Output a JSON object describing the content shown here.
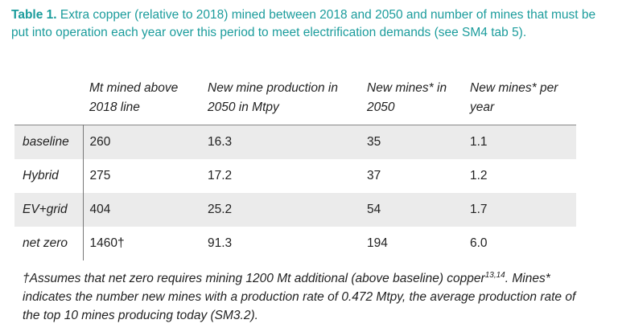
{
  "caption": {
    "label": "Table 1.",
    "text": "Extra copper (relative to 2018) mined between 2018 and 2050 and number of mines that must be put into operation each year over this period to meet electrification demands (see SM4 tab 5)."
  },
  "table": {
    "headers": [
      "Mt mined above 2018 line",
      "New mine production in 2050 in Mtpy",
      "New mines* in 2050",
      "New mines* per year"
    ],
    "rows": [
      [
        "baseline",
        "260",
        "16.3",
        "35",
        "1.1"
      ],
      [
        "Hybrid",
        "275",
        "17.2",
        "37",
        "1.2"
      ],
      [
        "EV+grid",
        "404",
        "25.2",
        "54",
        "1.7"
      ],
      [
        "net zero",
        "1460†",
        "91.3",
        "194",
        "6.0"
      ]
    ]
  },
  "footnote": {
    "text_before": "†Assumes that net zero requires mining 1200 Mt additional (above baseline) copper",
    "superscript": "13,14",
    "text_after": ". Mines* indicates the number new mines with a production rate of 0.472 Mtpy, the average production rate of the top 10 mines producing today (SM3.2)."
  }
}
